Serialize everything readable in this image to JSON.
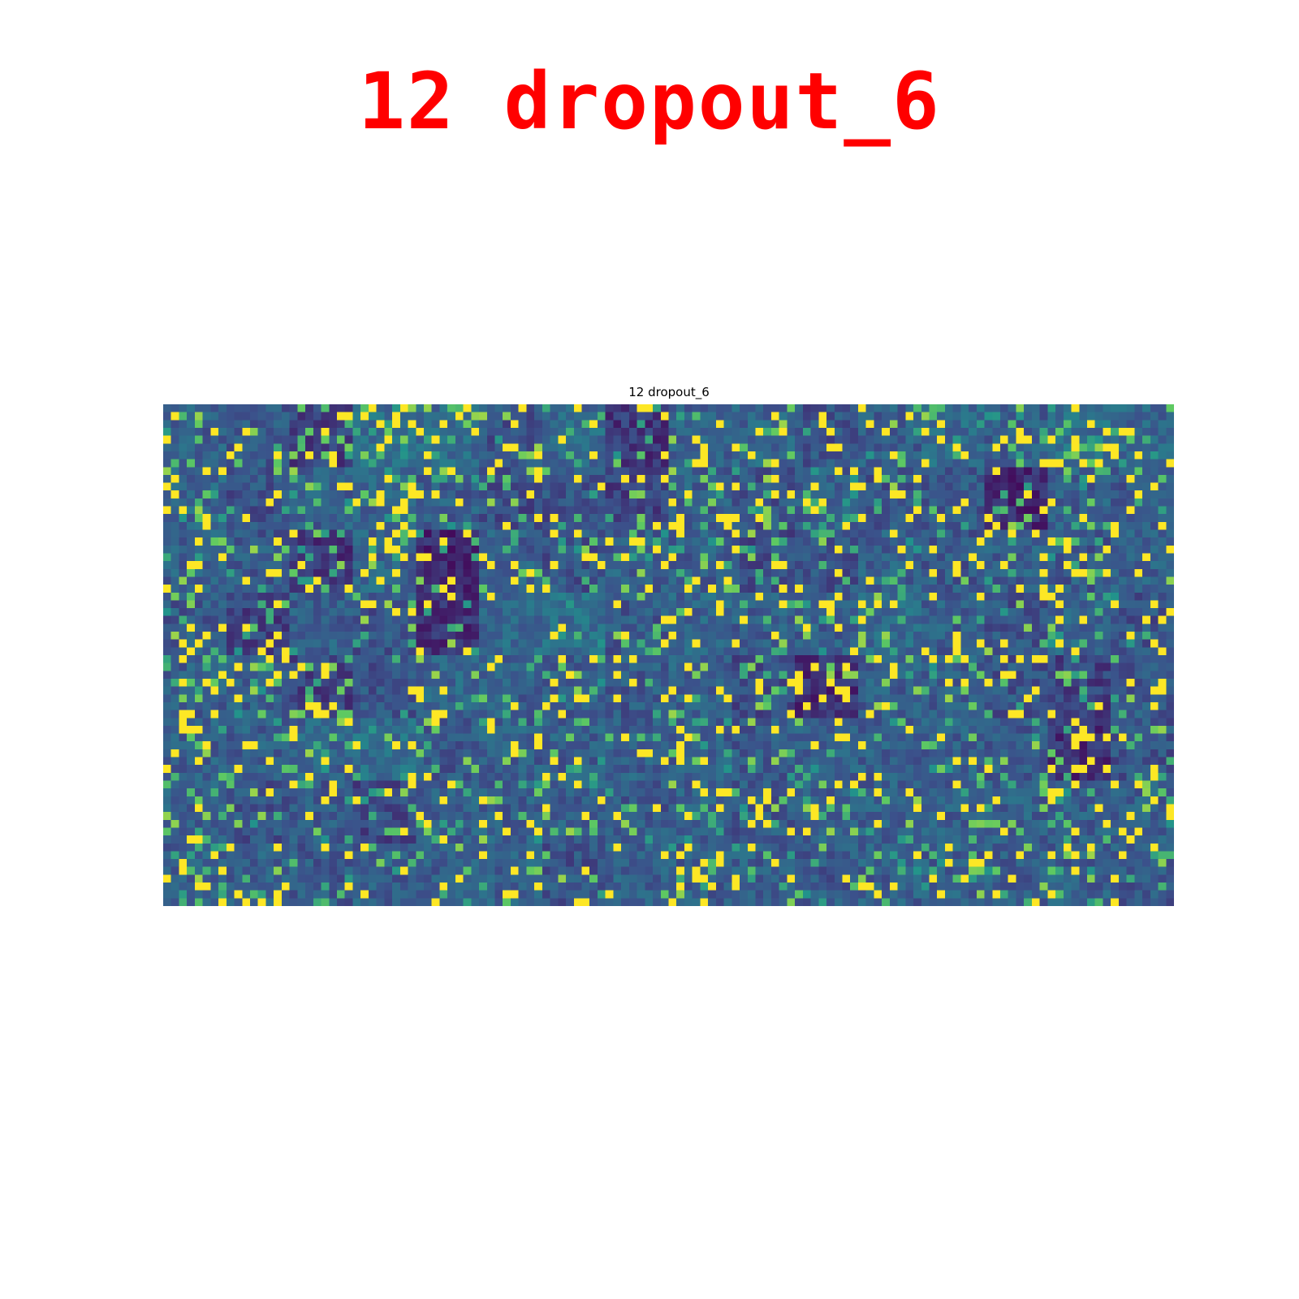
{
  "banner": {
    "title": "12 dropout_6",
    "color": "#ff0000"
  },
  "chart_data": {
    "type": "heatmap",
    "title": "12 dropout_6",
    "xlabel": "",
    "ylabel": "",
    "axes_visible": false,
    "grid": false,
    "colormap": "viridis",
    "colormap_stops": [
      "#440154",
      "#3b528b",
      "#21918c",
      "#5ec962",
      "#fde725"
    ],
    "tile_layout": {
      "tile_columns": 16,
      "tile_rows": 8,
      "cells_per_tile": 8,
      "cells_across": 128,
      "cells_down": 64
    },
    "tile_mean_level": [
      [
        0.3,
        0.28,
        0.2,
        0.36,
        0.34,
        0.26,
        0.34,
        0.16,
        0.3,
        0.32,
        0.26,
        0.3,
        0.34,
        0.3,
        0.36,
        0.32
      ],
      [
        0.32,
        0.26,
        0.3,
        0.32,
        0.3,
        0.24,
        0.26,
        0.2,
        0.3,
        0.26,
        0.3,
        0.26,
        0.28,
        0.12,
        0.3,
        0.28
      ],
      [
        0.3,
        0.28,
        0.16,
        0.32,
        0.12,
        0.3,
        0.26,
        0.3,
        0.3,
        0.24,
        0.26,
        0.3,
        0.28,
        0.3,
        0.28,
        0.3
      ],
      [
        0.28,
        0.2,
        0.3,
        0.26,
        0.14,
        0.34,
        0.36,
        0.28,
        0.32,
        0.3,
        0.3,
        0.34,
        0.3,
        0.26,
        0.32,
        0.26
      ],
      [
        0.3,
        0.3,
        0.2,
        0.26,
        0.32,
        0.3,
        0.3,
        0.28,
        0.3,
        0.24,
        0.14,
        0.3,
        0.3,
        0.26,
        0.2,
        0.28
      ],
      [
        0.3,
        0.3,
        0.32,
        0.36,
        0.28,
        0.3,
        0.3,
        0.3,
        0.3,
        0.28,
        0.3,
        0.3,
        0.3,
        0.28,
        0.14,
        0.26
      ],
      [
        0.3,
        0.26,
        0.28,
        0.22,
        0.3,
        0.3,
        0.3,
        0.28,
        0.3,
        0.28,
        0.3,
        0.3,
        0.3,
        0.3,
        0.3,
        0.3
      ],
      [
        0.3,
        0.3,
        0.28,
        0.3,
        0.3,
        0.3,
        0.26,
        0.3,
        0.3,
        0.3,
        0.28,
        0.3,
        0.3,
        0.3,
        0.3,
        0.28
      ]
    ],
    "tile_bright_fraction": [
      [
        0.2,
        0.1,
        0.3,
        0.22,
        0.28,
        0.3,
        0.22,
        0.12,
        0.1,
        0.2,
        0.1,
        0.26,
        0.22,
        0.3,
        0.3,
        0.22
      ],
      [
        0.22,
        0.14,
        0.22,
        0.24,
        0.14,
        0.2,
        0.12,
        0.14,
        0.24,
        0.22,
        0.28,
        0.2,
        0.06,
        0.22,
        0.26,
        0.18
      ],
      [
        0.22,
        0.24,
        0.3,
        0.2,
        0.26,
        0.3,
        0.22,
        0.2,
        0.24,
        0.26,
        0.22,
        0.18,
        0.2,
        0.18,
        0.2,
        0.14
      ],
      [
        0.14,
        0.24,
        0.1,
        0.24,
        0.24,
        0.06,
        0.06,
        0.2,
        0.12,
        0.2,
        0.26,
        0.2,
        0.18,
        0.2,
        0.22,
        0.14
      ],
      [
        0.2,
        0.22,
        0.24,
        0.1,
        0.18,
        0.2,
        0.14,
        0.1,
        0.18,
        0.22,
        0.24,
        0.22,
        0.18,
        0.2,
        0.14,
        0.16
      ],
      [
        0.18,
        0.14,
        0.2,
        0.1,
        0.16,
        0.2,
        0.16,
        0.14,
        0.2,
        0.16,
        0.18,
        0.12,
        0.16,
        0.14,
        0.18,
        0.18
      ],
      [
        0.2,
        0.16,
        0.22,
        0.14,
        0.18,
        0.2,
        0.18,
        0.16,
        0.2,
        0.22,
        0.2,
        0.16,
        0.18,
        0.16,
        0.18,
        0.18
      ],
      [
        0.22,
        0.2,
        0.22,
        0.18,
        0.16,
        0.2,
        0.18,
        0.18,
        0.2,
        0.22,
        0.18,
        0.2,
        0.22,
        0.18,
        0.2,
        0.2
      ]
    ]
  }
}
